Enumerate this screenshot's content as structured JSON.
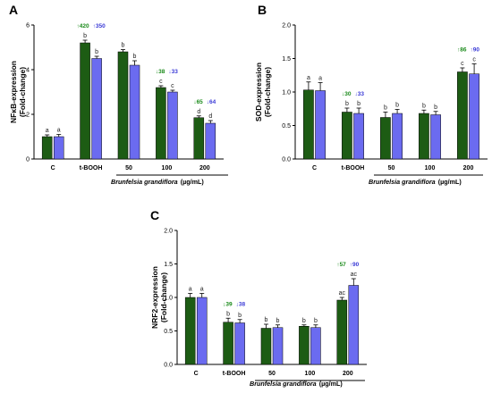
{
  "colors": {
    "green": "#1d5c14",
    "blue": "#6b6bf0",
    "up_arrow": "#1a8a1a",
    "down_green": "#1a8a1a",
    "down_blue": "#3a3ad6"
  },
  "figure": {
    "x_group_label": "Brunfelsia grandiflora",
    "x_unit_label": "(µg/mL)"
  },
  "chart_data": [
    {
      "panel": "A",
      "type": "bar",
      "ylabel_line1": "NFκB-expression",
      "ylabel_line2": "(Fold-change)",
      "ylim": [
        0,
        6
      ],
      "yticks": [
        0,
        2,
        4,
        6
      ],
      "categories": [
        "C",
        "t-BOOH",
        "50",
        "100",
        "200"
      ],
      "series": [
        {
          "values": [
            1.0,
            5.2,
            4.8,
            3.2,
            1.85
          ],
          "errors": [
            0.08,
            0.12,
            0.1,
            0.08,
            0.08
          ]
        },
        {
          "values": [
            1.0,
            4.5,
            4.2,
            3.0,
            1.6
          ],
          "errors": [
            0.1,
            0.1,
            0.2,
            0.08,
            0.12
          ]
        }
      ],
      "letters": [
        [
          "a",
          "b",
          "b",
          "c",
          "d"
        ],
        [
          "a",
          "b",
          "b",
          "c",
          "d"
        ]
      ],
      "annotations": [
        {
          "cat": 1,
          "dir": "up",
          "green": "420",
          "blue": "350"
        },
        {
          "cat": 3,
          "dir": "down",
          "green": "38",
          "blue": "33"
        },
        {
          "cat": 4,
          "dir": "down",
          "green": "65",
          "blue": "64"
        }
      ]
    },
    {
      "panel": "B",
      "type": "bar",
      "ylabel_line1": "SOD-expression",
      "ylabel_line2": "(Fold-change)",
      "ylim": [
        0,
        2.0
      ],
      "yticks": [
        "0.0",
        "0.5",
        "1.0",
        "1.5",
        "2.0"
      ],
      "categories": [
        "C",
        "t-BOOH",
        "50",
        "100",
        "200"
      ],
      "series": [
        {
          "values": [
            1.03,
            0.7,
            0.62,
            0.68,
            1.3
          ],
          "errors": [
            0.12,
            0.06,
            0.08,
            0.05,
            0.06
          ]
        },
        {
          "values": [
            1.02,
            0.68,
            0.68,
            0.66,
            1.27
          ],
          "errors": [
            0.12,
            0.08,
            0.06,
            0.05,
            0.15
          ]
        }
      ],
      "letters": [
        [
          "a",
          "b",
          "b",
          "b",
          "c"
        ],
        [
          "a",
          "b",
          "b",
          "b",
          "c"
        ]
      ],
      "annotations": [
        {
          "cat": 1,
          "dir": "down",
          "green": "30",
          "blue": "33"
        },
        {
          "cat": 4,
          "dir": "up",
          "green": "86",
          "blue": "90"
        }
      ]
    },
    {
      "panel": "C",
      "type": "bar",
      "ylabel_line1": "NRF2-expression",
      "ylabel_line2": "(Fold-change)",
      "ylim": [
        0,
        2.0
      ],
      "yticks": [
        "0.0",
        "0.5",
        "1.0",
        "1.5",
        "2.0"
      ],
      "categories": [
        "C",
        "t-BOOH",
        "50",
        "100",
        "200"
      ],
      "series": [
        {
          "values": [
            1.0,
            0.63,
            0.54,
            0.57,
            0.96
          ],
          "errors": [
            0.06,
            0.06,
            0.06,
            0.02,
            0.04
          ]
        },
        {
          "values": [
            1.0,
            0.62,
            0.55,
            0.55,
            1.18
          ],
          "errors": [
            0.06,
            0.05,
            0.04,
            0.04,
            0.1
          ]
        }
      ],
      "letters": [
        [
          "a",
          "b",
          "b",
          "b",
          "ac"
        ],
        [
          "a",
          "b",
          "b",
          "b",
          "ac"
        ]
      ],
      "annotations": [
        {
          "cat": 1,
          "dir": "down",
          "green": "39",
          "blue": "38"
        },
        {
          "cat": 4,
          "dir": "up",
          "green": "57",
          "blue": "90"
        }
      ]
    }
  ]
}
